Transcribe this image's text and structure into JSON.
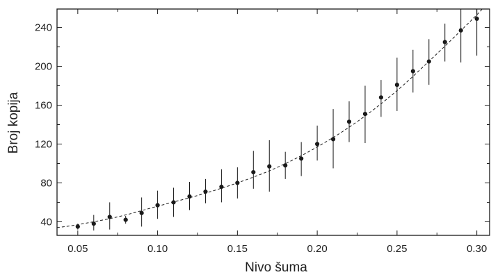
{
  "chart_data": {
    "type": "scatter",
    "title": "",
    "xlabel": "Nivo šuma",
    "ylabel": "Broj kopija",
    "xlim": [
      0.037,
      0.308
    ],
    "ylim": [
      26,
      259
    ],
    "grid": false,
    "legend": "none",
    "x_ticks": [
      0.05,
      0.1,
      0.15,
      0.2,
      0.25,
      0.3
    ],
    "x_tick_labels": [
      "0.05",
      "0.10",
      "0.15",
      "0.20",
      "0.25",
      "0.30"
    ],
    "y_ticks": [
      40,
      80,
      120,
      160,
      200,
      240
    ],
    "y_tick_labels": [
      "40",
      "80",
      "120",
      "160",
      "200",
      "240"
    ],
    "series": [
      {
        "x": [
          0.05,
          0.06,
          0.07,
          0.08,
          0.09,
          0.1,
          0.11,
          0.12,
          0.13,
          0.14,
          0.15,
          0.16,
          0.17,
          0.18,
          0.19,
          0.2,
          0.21,
          0.22,
          0.23,
          0.24,
          0.25,
          0.26,
          0.27,
          0.28,
          0.29,
          0.3
        ],
        "y": [
          35,
          38,
          45,
          42,
          49,
          57,
          60,
          66,
          71,
          76,
          80,
          91,
          97,
          98,
          105,
          120,
          125,
          143,
          151,
          168,
          181,
          195,
          205,
          225,
          237,
          249
        ],
        "y_low": [
          32,
          31,
          32,
          38,
          35,
          43,
          45,
          52,
          59,
          60,
          64,
          74,
          71,
          84,
          87,
          103,
          95,
          122,
          121,
          148,
          154,
          173,
          181,
          205,
          204,
          211
        ],
        "y_high": [
          38,
          47,
          60,
          46,
          65,
          72,
          75,
          81,
          84,
          94,
          96,
          113,
          124,
          112,
          122,
          139,
          156,
          164,
          180,
          186,
          209,
          217,
          228,
          244,
          270,
          270
        ],
        "color": "#1a1a1a"
      }
    ],
    "fit_curve": {
      "x": [
        0.037,
        0.05,
        0.075,
        0.1,
        0.125,
        0.15,
        0.175,
        0.2,
        0.225,
        0.25,
        0.275,
        0.3,
        0.303
      ],
      "y": [
        34,
        37,
        45,
        56,
        67,
        80,
        96,
        117,
        143,
        175,
        213,
        253,
        259
      ],
      "style": "dashed",
      "color": "#1a1a1a"
    }
  }
}
